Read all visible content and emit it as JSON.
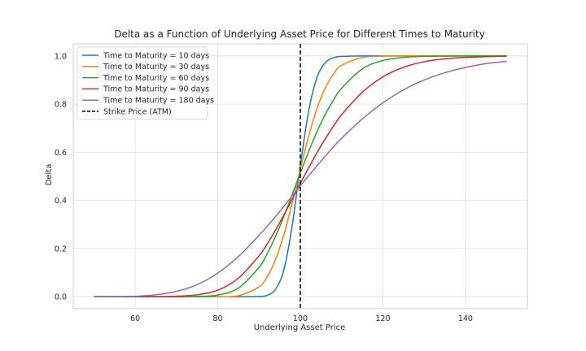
{
  "chart_data": {
    "type": "line",
    "title": "Delta as a Function of Underlying Asset Price for Different Times to Maturity",
    "xlabel": "Underlying Asset Price",
    "ylabel": "Delta",
    "xlim": [
      45,
      155
    ],
    "ylim": [
      -0.05,
      1.05
    ],
    "xticks": [
      60,
      80,
      100,
      120,
      140
    ],
    "yticks": [
      0.0,
      0.2,
      0.4,
      0.6,
      0.8,
      1.0
    ],
    "xtick_labels": [
      "60",
      "80",
      "100",
      "120",
      "140"
    ],
    "ytick_labels": [
      "0.0",
      "0.2",
      "0.4",
      "0.6",
      "0.8",
      "1.0"
    ],
    "grid": true,
    "legend_position": "top-left",
    "x": [
      50,
      55,
      60,
      65,
      70,
      75,
      80,
      85,
      90,
      92,
      94,
      96,
      98,
      100,
      102,
      104,
      106,
      108,
      110,
      115,
      120,
      125,
      130,
      135,
      140,
      145,
      150
    ],
    "series": [
      {
        "name": "Time to Maturity = 10 days",
        "color": "#1f77b4",
        "values": [
          0.0,
          0.0,
          0.0,
          0.0,
          0.0,
          0.0,
          0.0,
          0.0,
          0.001,
          0.006,
          0.031,
          0.111,
          0.292,
          0.544,
          0.769,
          0.909,
          0.971,
          0.992,
          0.998,
          1.0,
          1.0,
          1.0,
          1.0,
          1.0,
          1.0,
          1.0,
          1.0
        ]
      },
      {
        "name": "Time to Maturity = 30 days",
        "color": "#ff7f0e",
        "values": [
          0.0,
          0.0,
          0.0,
          0.0,
          0.0,
          0.0,
          0.0,
          0.004,
          0.041,
          0.084,
          0.155,
          0.257,
          0.387,
          0.53,
          0.666,
          0.78,
          0.866,
          0.925,
          0.961,
          0.994,
          0.999,
          1.0,
          1.0,
          1.0,
          1.0,
          1.0,
          1.0
        ]
      },
      {
        "name": "Time to Maturity = 60 days",
        "color": "#2ca02c",
        "values": [
          0.0,
          0.0,
          0.0,
          0.0,
          0.0,
          0.001,
          0.007,
          0.036,
          0.122,
          0.18,
          0.251,
          0.333,
          0.423,
          0.514,
          0.602,
          0.684,
          0.756,
          0.816,
          0.866,
          0.946,
          0.981,
          0.994,
          0.998,
          0.999,
          1.0,
          1.0,
          1.0
        ]
      },
      {
        "name": "Time to Maturity = 90 days",
        "color": "#d62728",
        "values": [
          0.0,
          0.0,
          0.0,
          0.0,
          0.002,
          0.008,
          0.027,
          0.077,
          0.17,
          0.22,
          0.277,
          0.339,
          0.404,
          0.47,
          0.535,
          0.597,
          0.655,
          0.708,
          0.756,
          0.849,
          0.913,
          0.953,
          0.976,
          0.988,
          0.994,
          0.997,
          0.999
        ]
      },
      {
        "name": "Time to Maturity = 180 days",
        "color": "#9467bd",
        "values": [
          0.0,
          0.0,
          0.002,
          0.008,
          0.022,
          0.05,
          0.098,
          0.167,
          0.255,
          0.293,
          0.333,
          0.375,
          0.418,
          0.46,
          0.502,
          0.543,
          0.583,
          0.622,
          0.658,
          0.738,
          0.805,
          0.859,
          0.9,
          0.93,
          0.952,
          0.968,
          0.978
        ]
      }
    ],
    "reference_lines": [
      {
        "name": "Strike Price (ATM)",
        "x": 100,
        "color": "#000000",
        "style": "dashed"
      }
    ]
  }
}
